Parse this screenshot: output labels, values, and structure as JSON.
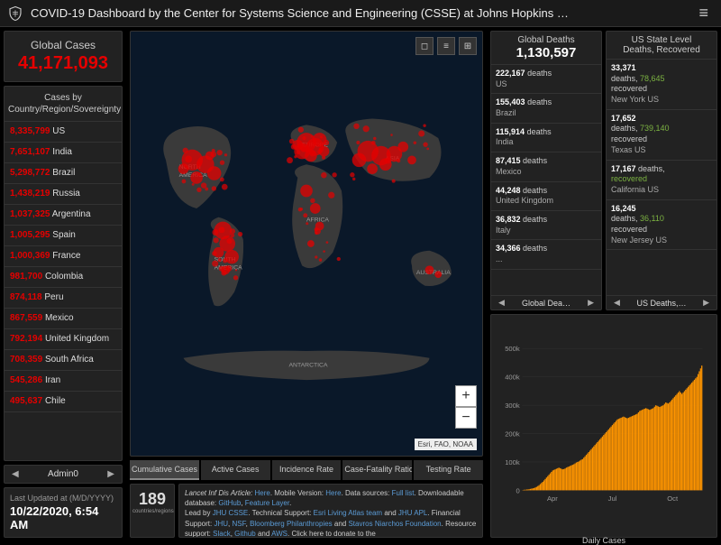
{
  "header": {
    "title": "COVID-19 Dashboard by the Center for Systems Science and Engineering (CSSE) at Johns Hopkins …"
  },
  "global_cases": {
    "label": "Global Cases",
    "value": "41,171,093",
    "color": "#e60000"
  },
  "cases_by": {
    "header": "Cases by Country/Region/Sovereignty",
    "rows": [
      {
        "n": "8,335,799",
        "c": "US"
      },
      {
        "n": "7,651,107",
        "c": "India"
      },
      {
        "n": "5,298,772",
        "c": "Brazil"
      },
      {
        "n": "1,438,219",
        "c": "Russia"
      },
      {
        "n": "1,037,325",
        "c": "Argentina"
      },
      {
        "n": "1,005,295",
        "c": "Spain"
      },
      {
        "n": "1,000,369",
        "c": "France"
      },
      {
        "n": "981,700",
        "c": "Colombia"
      },
      {
        "n": "874,118",
        "c": "Peru"
      },
      {
        "n": "867,559",
        "c": "Mexico"
      },
      {
        "n": "792,194",
        "c": "United Kingdom"
      },
      {
        "n": "708,359",
        "c": "South Africa"
      },
      {
        "n": "545,286",
        "c": "Iran"
      },
      {
        "n": "495,637",
        "c": "Chile"
      }
    ]
  },
  "admin": {
    "label": "Admin0"
  },
  "updated": {
    "label": "Last Updated at (M/D/YYYY)",
    "value": "10/22/2020, 6:54 AM"
  },
  "map": {
    "attribution": "Esri, FAO, NOAA",
    "continents": [
      "NORTH AMERICA",
      "SOUTH AMERICA",
      "EUROPE",
      "AFRICA",
      "ASIA",
      "AUSTRALIA",
      "ANTARCTICA"
    ],
    "land_color": "#3a3a3a",
    "ocean_color": "#0a1829",
    "dot_color": "#e60000"
  },
  "tabs": [
    "Cumulative Cases",
    "Active Cases",
    "Incidence Rate",
    "Case-Fatality Ratio",
    "Testing Rate"
  ],
  "countries_count": {
    "n": "189",
    "l": "countries/regions"
  },
  "credits": {
    "text1": "Lancet Inf Dis Article: ",
    "link1": "Here",
    "text2": ". Mobile Version: ",
    "link2": "Here",
    "text3": ". Data sources: ",
    "link3": "Full list",
    "text4": ". Downloadable database: ",
    "link4": "GitHub",
    "text5": ", ",
    "link5": "Feature Layer",
    "text6": ".",
    "text7": "Lead by ",
    "link6": "JHU CSSE",
    "text8": ". Technical Support: ",
    "link7": "Esri Living Atlas team",
    "text9": " and ",
    "link8": "JHU APL",
    "text10": ". Financial Support: ",
    "link9": "JHU",
    "text11": ", ",
    "link10": "NSF",
    "text12": ", ",
    "link11": "Bloomberg Philanthropies",
    "text13": " and ",
    "link12": "Stavros Niarchos Foundation",
    "text14": ". Resource support: ",
    "link13": "Slack",
    "text15": ", ",
    "link14": "Github",
    "text16": " and ",
    "link15": "AWS",
    "text17": ". Click here to donate to the"
  },
  "deaths": {
    "label": "Global Deaths",
    "value": "1,130,597",
    "nav": "Global Dea…",
    "rows": [
      {
        "n": "222,167",
        "d": "deaths",
        "c": "US"
      },
      {
        "n": "155,403",
        "d": "deaths",
        "c": "Brazil"
      },
      {
        "n": "115,914",
        "d": "deaths",
        "c": "India"
      },
      {
        "n": "87,415",
        "d": "deaths",
        "c": "Mexico"
      },
      {
        "n": "44,248",
        "d": "deaths",
        "c": "United Kingdom"
      },
      {
        "n": "36,832",
        "d": "deaths",
        "c": "Italy"
      },
      {
        "n": "34,366",
        "d": "deaths",
        "c": "..."
      }
    ]
  },
  "us_state": {
    "label": "US State Level",
    "sublabel": "Deaths, Recovered",
    "nav": "US Deaths,…",
    "rows": [
      {
        "n": "33,371",
        "r": "78,645",
        "c": "New York US"
      },
      {
        "n": "17,652",
        "r": "739,140",
        "c": "Texas US"
      },
      {
        "n": "17,167",
        "r": "",
        "c": "California US"
      },
      {
        "n": "16,245",
        "r": "36,110",
        "c": "New Jersey US"
      }
    ]
  },
  "chart": {
    "title": "Daily Cases",
    "y_ticks": [
      "0",
      "100k",
      "200k",
      "300k",
      "400k",
      "500k"
    ],
    "x_ticks": [
      "Apr",
      "Jul",
      "Oct"
    ],
    "ylim": [
      0,
      500000
    ],
    "bar_color": "#ff9500",
    "grid_color": "#333333",
    "background": "#222222",
    "data": [
      1,
      2,
      2,
      3,
      3,
      4,
      5,
      6,
      7,
      8,
      10,
      12,
      15,
      18,
      22,
      26,
      30,
      35,
      40,
      45,
      50,
      55,
      60,
      65,
      70,
      72,
      74,
      76,
      78,
      80,
      78,
      76,
      74,
      75,
      77,
      80,
      82,
      84,
      86,
      88,
      90,
      92,
      95,
      98,
      100,
      102,
      105,
      108,
      110,
      115,
      120,
      125,
      130,
      135,
      140,
      145,
      150,
      155,
      160,
      165,
      170,
      175,
      180,
      185,
      190,
      195,
      200,
      205,
      210,
      215,
      220,
      225,
      230,
      235,
      240,
      245,
      250,
      252,
      254,
      256,
      258,
      260,
      258,
      256,
      254,
      256,
      258,
      260,
      262,
      264,
      266,
      268,
      270,
      275,
      280,
      282,
      284,
      286,
      288,
      290,
      288,
      286,
      284,
      286,
      288,
      290,
      295,
      300,
      298,
      296,
      294,
      296,
      298,
      300,
      305,
      310,
      308,
      306,
      310,
      315,
      320,
      325,
      330,
      335,
      340,
      345,
      350,
      345,
      340,
      345,
      350,
      355,
      360,
      365,
      370,
      375,
      380,
      385,
      390,
      395,
      400,
      410,
      420,
      430,
      440
    ]
  }
}
